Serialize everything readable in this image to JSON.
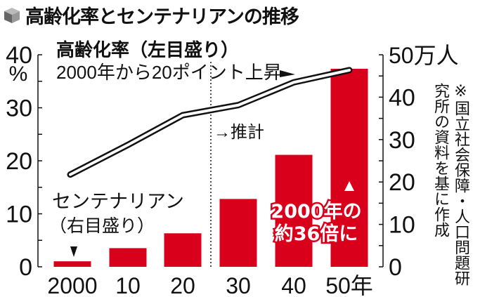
{
  "title": "高齢化率とセンテナリアンの推移",
  "source_note": "※国立社会保障・人口問題研究所の資料を基に作成",
  "chart_data": {
    "type": "bar+line",
    "title": "高齢化率とセンテナリアンの推移",
    "categories": [
      "2000",
      "10",
      "20",
      "30",
      "40",
      "50年"
    ],
    "x": [
      2000,
      2010,
      2020,
      2030,
      2040,
      2050
    ],
    "left_axis": {
      "unit": "%",
      "ylim": [
        0,
        40
      ],
      "ticks": [
        "0",
        "10",
        "20",
        "30",
        "40"
      ]
    },
    "right_axis": {
      "unit": "万人",
      "ylim": [
        0,
        50
      ],
      "ticks": [
        "0",
        "10",
        "20",
        "30",
        "40",
        "50"
      ],
      "top_label": "50万人"
    },
    "series": [
      {
        "name": "高齢化率",
        "axis": "left",
        "type": "line",
        "label": "高齢化率（左目盛り）",
        "values": [
          17.4,
          23.0,
          28.6,
          30.5,
          34.8,
          37.1
        ]
      },
      {
        "name": "センテナリアン",
        "axis": "right",
        "type": "bar",
        "label": "センテナリアン",
        "sublabel": "（右目盛り）",
        "values": [
          1.3,
          4.4,
          7.9,
          16.0,
          26.4,
          46.7
        ],
        "color": "#d9001b"
      }
    ],
    "annotations": {
      "line_note": "2000年から20ポイント上昇",
      "projection": "→推計",
      "bar_note_1": "2000年の",
      "bar_note_2": "約36倍に"
    },
    "projection_start": 2025
  }
}
